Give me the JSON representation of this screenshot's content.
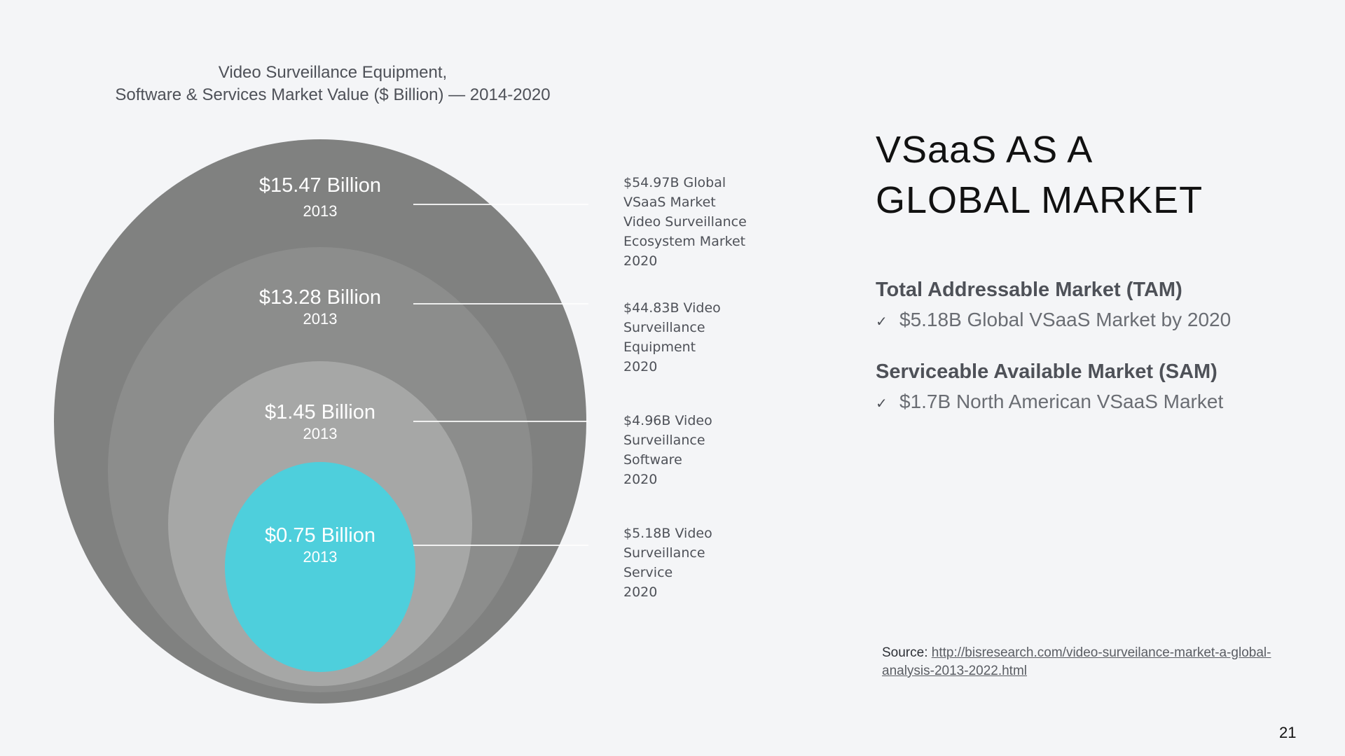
{
  "chart": {
    "title_line1": "Video Surveillance Equipment,",
    "title_line2": "Software & Services Market Value ($ Billion) — 2014-2020",
    "rings": [
      {
        "value": "$15.47 Billion",
        "year": "2013",
        "color": "#808180",
        "callout": [
          "$54.97B Global",
          "VSaaS Market",
          "Video Surveillance",
          "Ecosystem Market",
          "2020"
        ]
      },
      {
        "value": "$13.28 Billion",
        "year": "2013",
        "color": "#8c8d8c",
        "callout": [
          "$44.83B Video",
          "Surveillance",
          "Equipment",
          "2020"
        ]
      },
      {
        "value": "$1.45 Billion",
        "year": "2013",
        "color": "#a6a7a6",
        "callout": [
          "$4.96B Video",
          "Surveillance",
          "Software",
          "2020"
        ]
      },
      {
        "value": "$0.75 Billion",
        "year": "2013",
        "color": "#4ecfdc",
        "callout": [
          "$5.18B Video",
          "Surveillance",
          "Service",
          "2020"
        ]
      }
    ]
  },
  "slide": {
    "title_line1": "VSaaS AS A",
    "title_line2": "GLOBAL MARKET",
    "tam": {
      "heading": "Total Addressable Market (TAM)",
      "item": "$5.18B Global VSaaS Market by 2020",
      "icon": "check-icon"
    },
    "sam": {
      "heading": "Serviceable Available Market (SAM)",
      "item": "$1.7B North American VSaaS Market",
      "icon": "check-icon"
    },
    "check_glyph": "✓",
    "source_label": "Source:",
    "source_url_line1": "http://bisresearch.com/video-surveilance-market-a-global-",
    "source_url_line2": "analysis-2013-2022.html",
    "page_number": "21"
  }
}
